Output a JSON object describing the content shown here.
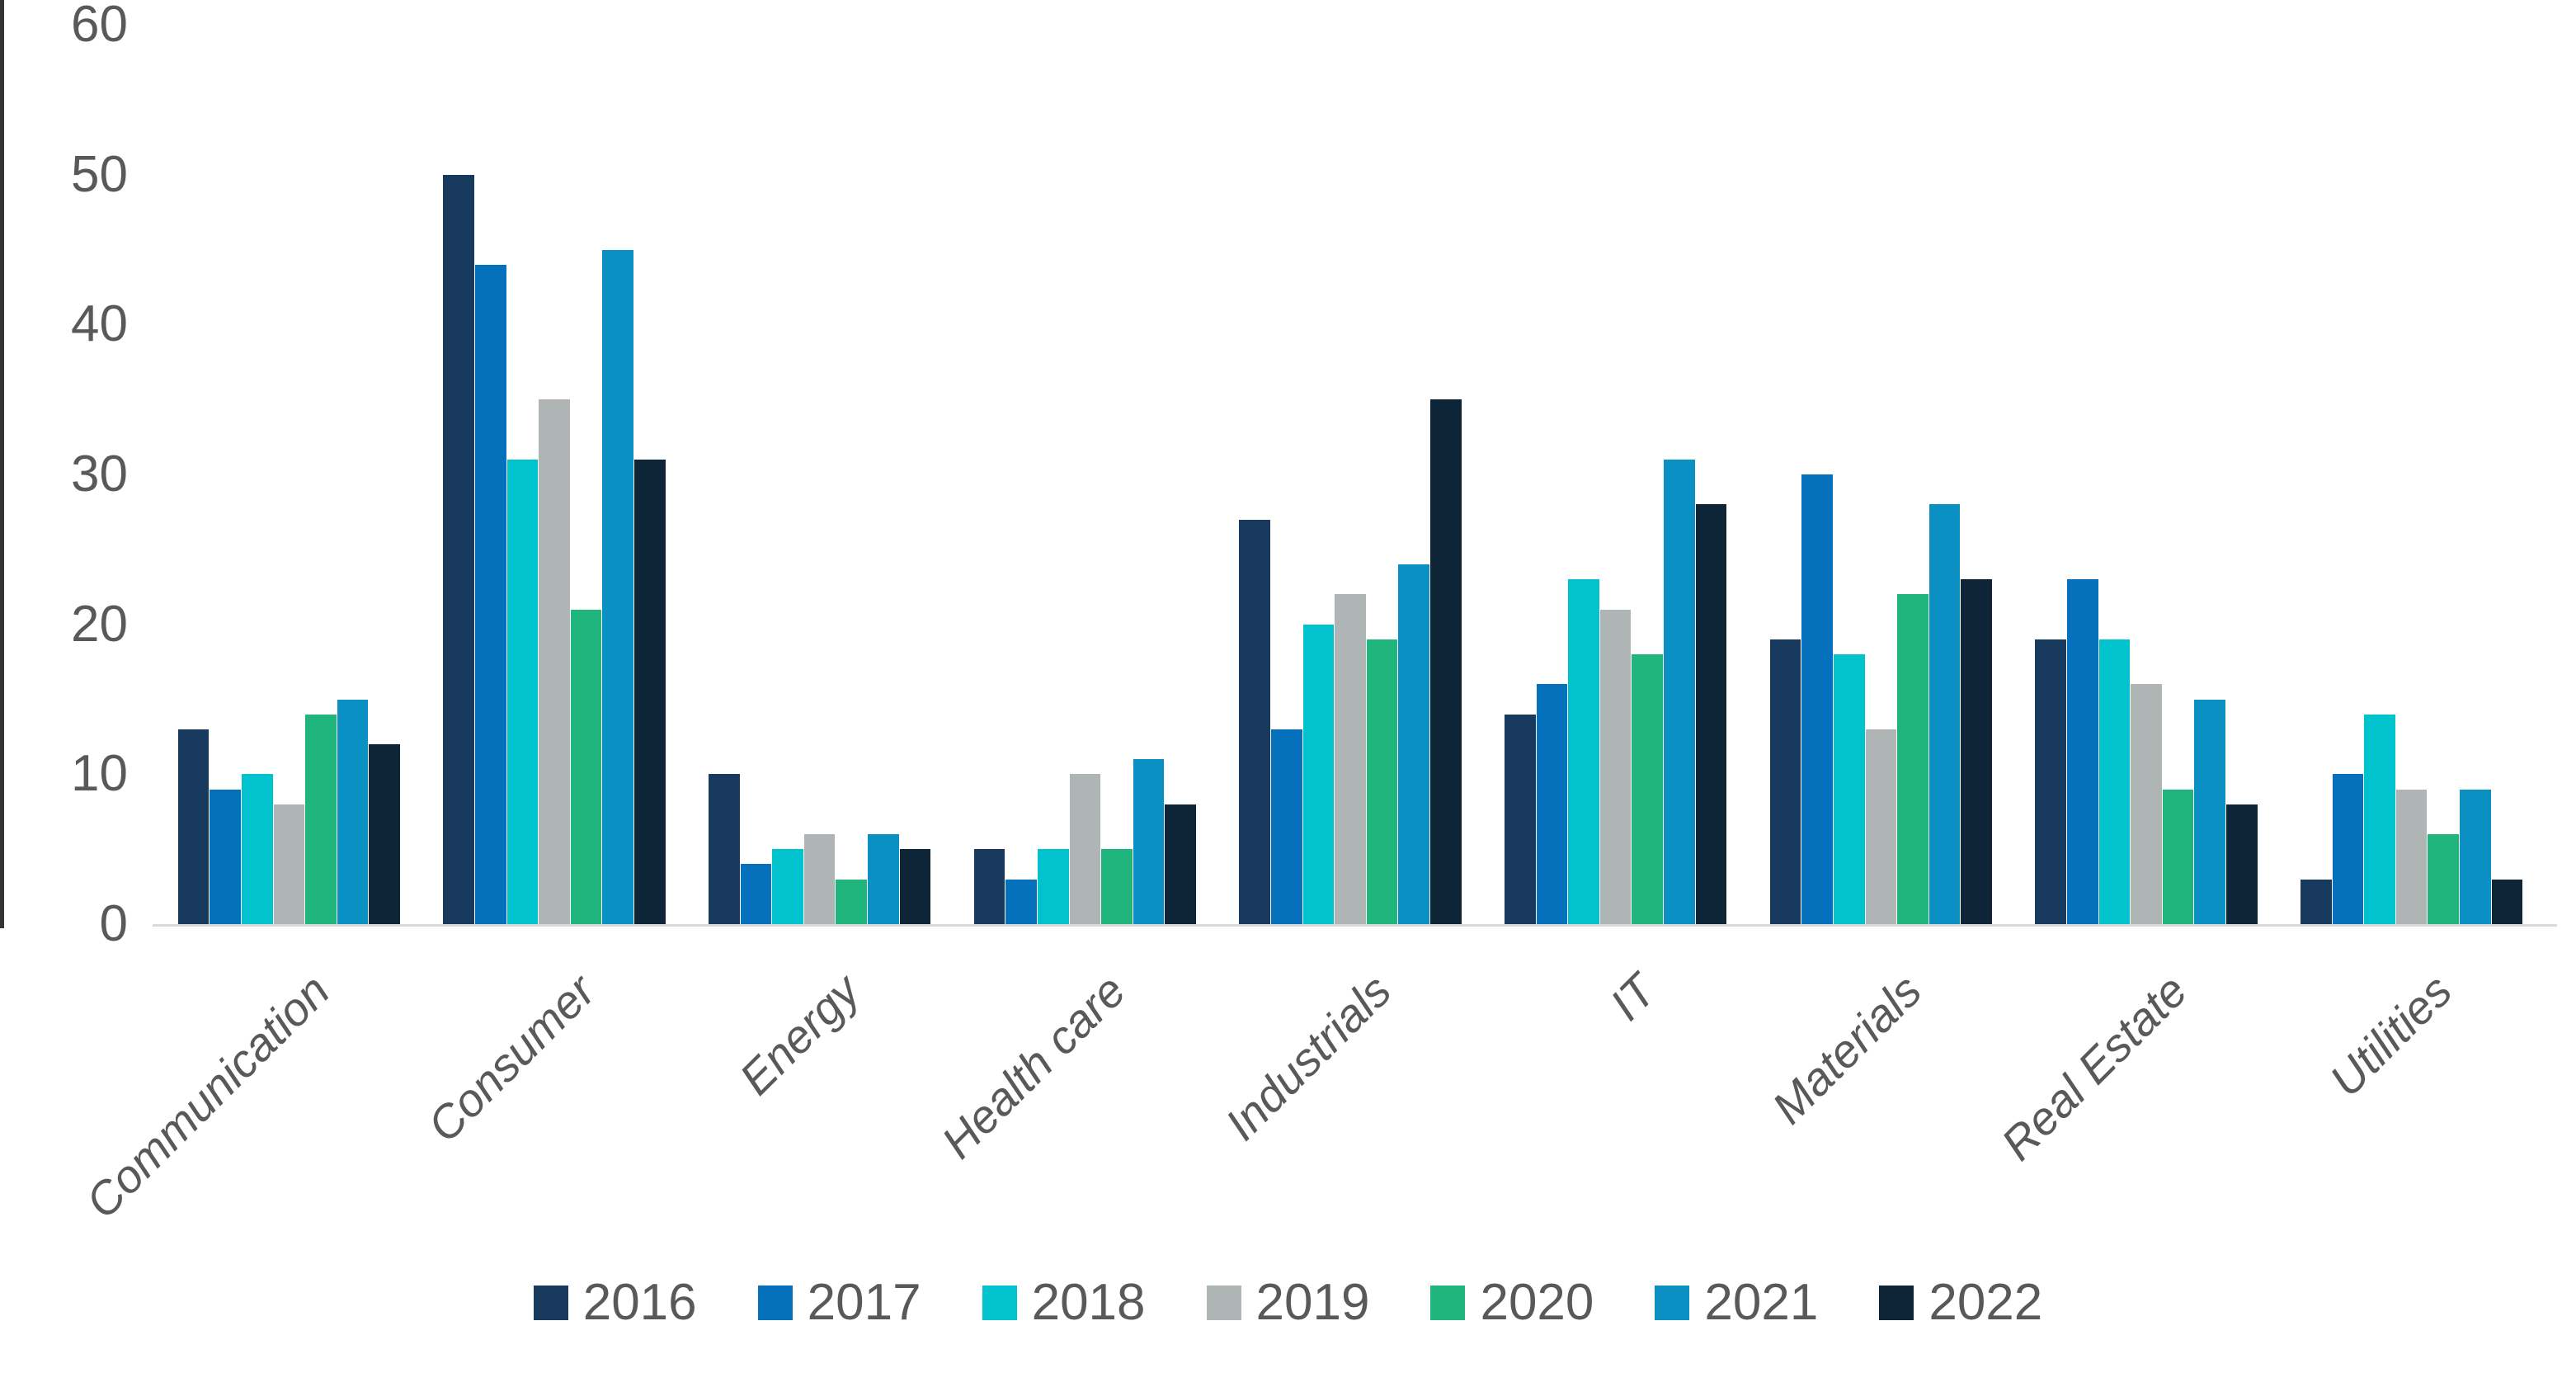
{
  "chart_data": {
    "type": "bar",
    "title": "",
    "categories": [
      "Communication",
      "Consumer",
      "Energy",
      "Health care",
      "Industrials",
      "IT",
      "Materials",
      "Real Estate",
      "Utilities"
    ],
    "series": [
      {
        "name": "2016",
        "color": "#173A5E",
        "values": [
          13,
          50,
          10,
          5,
          27,
          14,
          19,
          19,
          3
        ]
      },
      {
        "name": "2017",
        "color": "#0571BC",
        "values": [
          9,
          44,
          4,
          3,
          13,
          16,
          30,
          23,
          10
        ]
      },
      {
        "name": "2018",
        "color": "#00C3CE",
        "values": [
          10,
          31,
          5,
          5,
          20,
          23,
          18,
          19,
          14
        ]
      },
      {
        "name": "2019",
        "color": "#AFB4B4",
        "values": [
          8,
          35,
          6,
          10,
          22,
          21,
          13,
          16,
          9
        ]
      },
      {
        "name": "2020",
        "color": "#1FB57D",
        "values": [
          14,
          21,
          3,
          5,
          19,
          18,
          22,
          9,
          6
        ]
      },
      {
        "name": "2021",
        "color": "#0B90C4",
        "values": [
          15,
          45,
          6,
          11,
          24,
          31,
          28,
          15,
          9
        ]
      },
      {
        "name": "2022",
        "color": "#0D2537",
        "values": [
          12,
          31,
          5,
          8,
          35,
          28,
          23,
          8,
          3
        ]
      }
    ],
    "y_ticks": [
      0,
      10,
      20,
      30,
      40,
      50,
      60
    ],
    "ylim": [
      0,
      60
    ],
    "xlabel": "",
    "ylabel": "",
    "grid": false,
    "legend_position": "bottom",
    "legend_labels": [
      "2016",
      "2017",
      "2018",
      "2019",
      "2020",
      "2021",
      "2022"
    ],
    "axis_line_color": "#D9D9D9",
    "text_color": "#595959"
  }
}
